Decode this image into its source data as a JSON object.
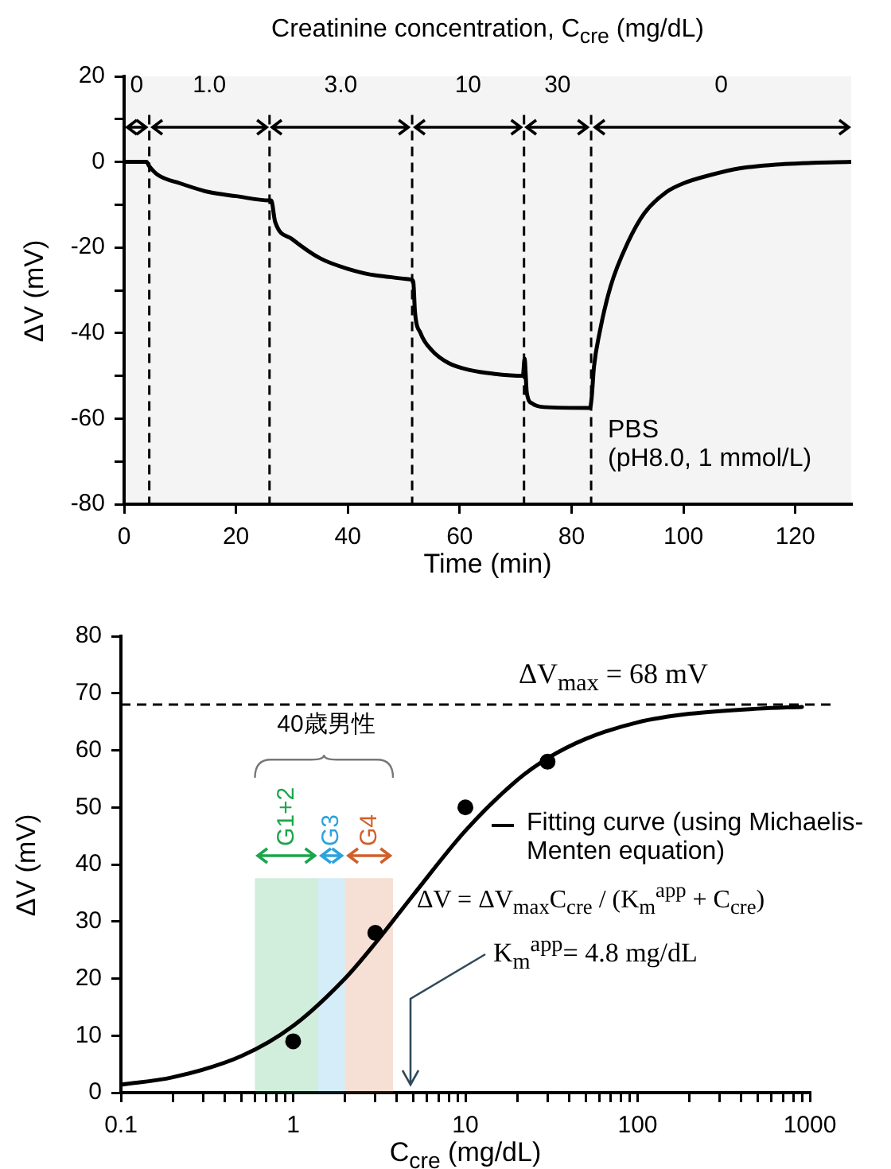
{
  "chart_data": [
    {
      "type": "line",
      "title": "Creatinine concentration, C$_{cre}$ (mg/dL)",
      "xlabel": "Time (min)",
      "ylabel": "ΔV (mV)",
      "x": [
        0,
        4,
        4.5,
        6,
        10,
        15,
        20,
        26,
        26.3,
        27,
        30,
        35,
        40,
        45,
        51.3,
        51.7,
        52,
        53,
        55,
        58,
        62,
        66,
        71.3,
        71.6,
        72,
        73,
        75,
        83.3,
        83.6,
        84,
        85,
        87,
        90,
        93,
        97,
        100,
        105,
        110,
        118,
        130
      ],
      "series": [
        {
          "color": "#000000",
          "values": [
            0,
            0,
            -1,
            -3,
            -5,
            -7,
            -8,
            -9,
            -9,
            -14,
            -18,
            -22.5,
            -25,
            -26.5,
            -27.5,
            -28,
            -35,
            -40,
            -44,
            -47,
            -48.7,
            -49.5,
            -50,
            -46,
            -54,
            -56.5,
            -57.3,
            -57.5,
            -55,
            -48,
            -40,
            -29,
            -19,
            -12,
            -7,
            -5,
            -3,
            -1.5,
            -0.5,
            0
          ]
        }
      ],
      "xlim": [
        0,
        130
      ],
      "xticks": [
        0,
        20,
        40,
        60,
        80,
        100,
        120
      ],
      "ylim": [
        -80,
        20
      ],
      "yticks": [
        -80,
        {
          "value": -70,
          "label": null
        },
        -60,
        {
          "value": -50,
          "label": null
        },
        -40,
        {
          "value": -30,
          "label": null
        },
        -20,
        {
          "value": -10,
          "label": null
        },
        0,
        {
          "value": 10,
          "label": null
        },
        20
      ],
      "ref_lines": [
        {
          "axis": "x",
          "value": 4.5,
          "line_style": "dashed",
          "color": "#000000"
        },
        {
          "axis": "x",
          "value": 26,
          "line_style": "dashed",
          "color": "#000000"
        },
        {
          "axis": "x",
          "value": 51.5,
          "line_style": "dashed",
          "color": "#000000"
        },
        {
          "axis": "x",
          "value": 71.5,
          "line_style": "dashed",
          "color": "#000000"
        },
        {
          "axis": "x",
          "value": 83.5,
          "line_style": "dashed",
          "color": "#000000"
        }
      ],
      "bands": [
        {
          "axis": "x",
          "from": 0,
          "to": 4.5,
          "label": "0"
        },
        {
          "axis": "x",
          "from": 4.5,
          "to": 26,
          "label": "1.0"
        },
        {
          "axis": "x",
          "from": 26,
          "to": 51.5,
          "label": "3.0"
        },
        {
          "axis": "x",
          "from": 51.5,
          "to": 71.5,
          "label": "10"
        },
        {
          "axis": "x",
          "from": 71.5,
          "to": 83.5,
          "label": "30"
        },
        {
          "axis": "x",
          "from": 83.5,
          "to": 130,
          "label": "0"
        }
      ],
      "annotations": [
        "PBS\n(pH8.0, 1 mmol/L)"
      ],
      "marker": "none",
      "grid": false
    },
    {
      "type": "scatter",
      "xlabel": "C$_{cre}$ (mg/dL)",
      "ylabel": "ΔV (mV)",
      "log": "x",
      "xlim": [
        0.1,
        1000
      ],
      "xticks": [
        0.1,
        {
          "value": 0.2,
          "label": null
        },
        {
          "value": 0.3,
          "label": null
        },
        {
          "value": 0.4,
          "label": null
        },
        {
          "value": 0.5,
          "label": null
        },
        {
          "value": 0.6,
          "label": null
        },
        {
          "value": 0.7,
          "label": null
        },
        {
          "value": 0.8,
          "label": null
        },
        {
          "value": 0.9,
          "label": null
        },
        1,
        {
          "value": 2,
          "label": null
        },
        {
          "value": 3,
          "label": null
        },
        {
          "value": 4,
          "label": null
        },
        {
          "value": 5,
          "label": null
        },
        {
          "value": 6,
          "label": null
        },
        {
          "value": 7,
          "label": null
        },
        {
          "value": 8,
          "label": null
        },
        {
          "value": 9,
          "label": null
        },
        10,
        {
          "value": 20,
          "label": null
        },
        {
          "value": 30,
          "label": null
        },
        {
          "value": 40,
          "label": null
        },
        {
          "value": 50,
          "label": null
        },
        {
          "value": 60,
          "label": null
        },
        {
          "value": 70,
          "label": null
        },
        {
          "value": 80,
          "label": null
        },
        {
          "value": 90,
          "label": null
        },
        100,
        {
          "value": 200,
          "label": null
        },
        {
          "value": 300,
          "label": null
        },
        {
          "value": 400,
          "label": null
        },
        {
          "value": 500,
          "label": null
        },
        {
          "value": 600,
          "label": null
        },
        {
          "value": 700,
          "label": null
        },
        {
          "value": 800,
          "label": null
        },
        {
          "value": 900,
          "label": null
        },
        1000
      ],
      "ylim": [
        0,
        80
      ],
      "yticks": [
        0,
        10,
        20,
        30,
        40,
        50,
        60,
        70,
        80
      ],
      "series": [
        {
          "type": "scatter",
          "color": "#000000",
          "x": [
            1,
            3,
            10,
            30
          ],
          "values": [
            9,
            28,
            50,
            58
          ],
          "marker": "circle"
        },
        {
          "type": "line",
          "name": "Fitting curve (using Michaelis-Menten equation)",
          "color": "#000000",
          "x": [
            0.1,
            0.2,
            0.5,
            1,
            2,
            3,
            5,
            10,
            20,
            30,
            50,
            100,
            200,
            500,
            900
          ],
          "values": [
            1.4,
            2.7,
            6.4,
            11.7,
            20,
            26.2,
            34.7,
            45.9,
            54.8,
            58.6,
            62,
            64.9,
            66.4,
            67.3,
            67.6
          ],
          "marker": "none"
        }
      ],
      "ref_lines": [
        {
          "axis": "y",
          "value": 68,
          "label": "ΔV$_{max}$ = 68 mV",
          "line_style": "dashed",
          "color": "#000000"
        }
      ],
      "bands": [
        {
          "axis": "x",
          "from": 0.6,
          "to": 1.4,
          "label": "G1+2",
          "color": "#1aa64a"
        },
        {
          "axis": "x",
          "from": 1.4,
          "to": 2,
          "label": "G3",
          "color": "#2ba3dc"
        },
        {
          "axis": "x",
          "from": 2,
          "to": 3.8,
          "label": "G4",
          "color": "#d0602a"
        }
      ],
      "annotations": [
        "40歳男性",
        "ΔV = ΔV$_{max}$C$_{cre}$ / (K$_{m}$$^{app}$ + C$_{cre}$)",
        "K$_{m}$$^{app}$= 4.8 mg/dL"
      ],
      "legend": "right",
      "grid": false
    }
  ]
}
